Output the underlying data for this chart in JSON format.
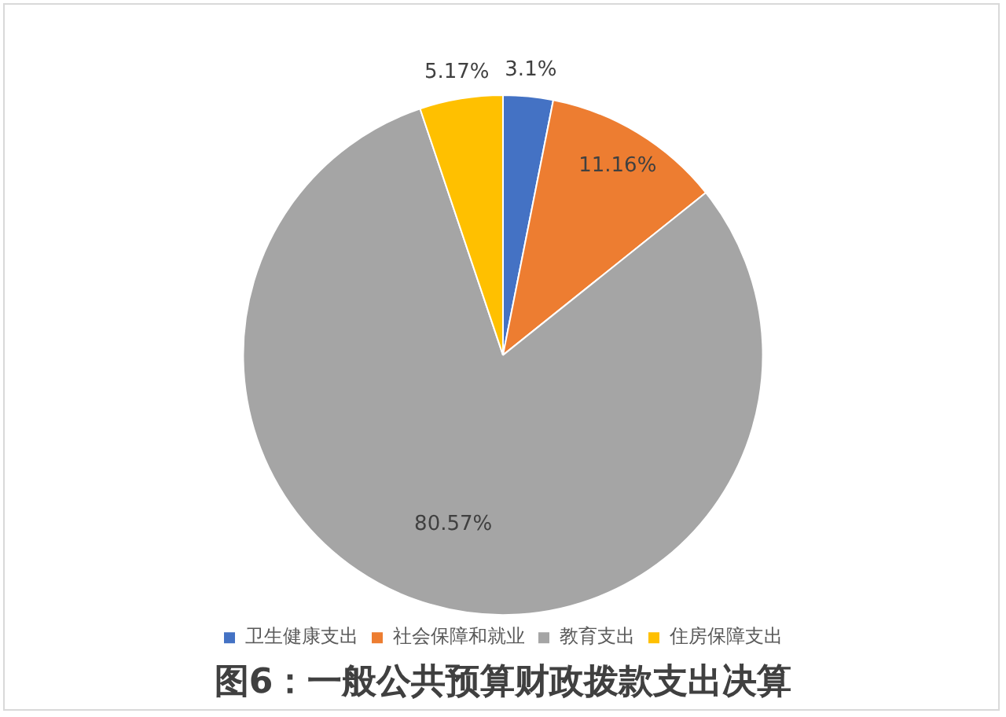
{
  "chart_data": {
    "type": "pie",
    "title": "图6：一般公共预算财政拨款支出决算",
    "categories": [
      "卫生健康支出",
      "社会保障和就业",
      "教育支出",
      "住房保障支出"
    ],
    "values": [
      3.1,
      11.16,
      80.57,
      5.17
    ],
    "colors": [
      "#4472c4",
      "#ed7d31",
      "#a5a5a5",
      "#ffc000"
    ],
    "value_labels": [
      "3.1%",
      "11.16%",
      "80.57%",
      "5.17%"
    ],
    "legend": "bottom"
  }
}
